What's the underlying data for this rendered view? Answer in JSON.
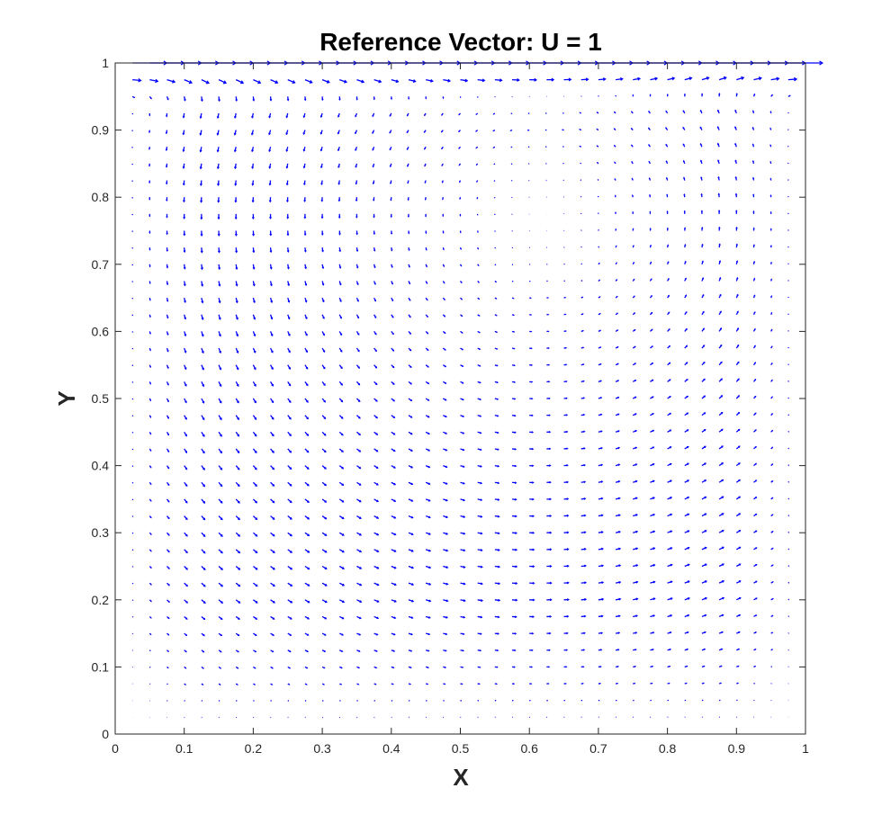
{
  "chart_data": {
    "type": "quiver",
    "title": "Reference Vector: U = 1",
    "xlabel": "X",
    "ylabel": "Y",
    "xlim": [
      0,
      1
    ],
    "ylim": [
      0,
      1
    ],
    "xticks": [
      0,
      0.1,
      0.2,
      0.3,
      0.4,
      0.5,
      0.6,
      0.7,
      0.8,
      0.9,
      1
    ],
    "yticks": [
      0,
      0.1,
      0.2,
      0.3,
      0.4,
      0.5,
      0.6,
      0.7,
      0.8,
      0.9,
      1
    ],
    "xtick_labels": [
      "0",
      "0.1",
      "0.2",
      "0.3",
      "0.4",
      "0.5",
      "0.6",
      "0.7",
      "0.8",
      "0.9",
      "1"
    ],
    "ytick_labels": [
      "0",
      "0.1",
      "0.2",
      "0.3",
      "0.4",
      "0.5",
      "0.6",
      "0.7",
      "0.8",
      "0.9",
      "1"
    ],
    "grid": false,
    "field": {
      "description": "lid-driven cavity flow velocity field",
      "x_start": 0.025,
      "x_end": 0.975,
      "x_step": 0.025,
      "y_start": 0.025,
      "y_end": 1.0,
      "y_step": 0.025,
      "lid_velocity": 1,
      "vortex_center": [
        0.62,
        0.77
      ]
    },
    "arrow_color": "#0000ff"
  }
}
